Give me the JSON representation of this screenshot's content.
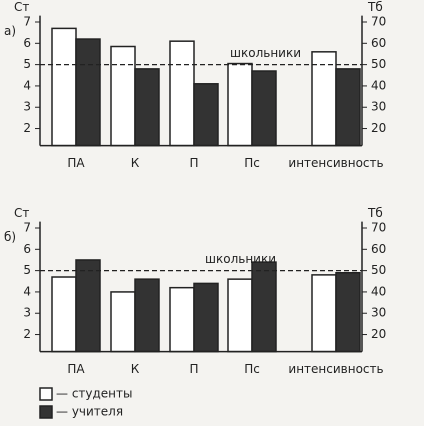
{
  "chart_data": [
    {
      "type": "bar",
      "panel": "а)",
      "ylabel": "Ст",
      "y2label": "Тб",
      "categories": [
        "ПА",
        "К",
        "П",
        "Пс",
        "интенсивность"
      ],
      "series": [
        {
          "color": "#ffffff",
          "values": [
            6.7,
            5.85,
            6.1,
            5.05,
            5.6
          ]
        },
        {
          "color": "#333333",
          "values": [
            6.2,
            4.8,
            4.1,
            4.7,
            4.8
          ]
        }
      ],
      "ylim": [
        1.2,
        7.3
      ],
      "yticks": [
        2,
        3,
        4,
        5,
        6,
        7
      ],
      "y2lim": [
        12,
        73
      ],
      "y2ticks": [
        20,
        30,
        40,
        50,
        60,
        70
      ],
      "reference": {
        "value": 5,
        "label": "школьники"
      }
    },
    {
      "type": "bar",
      "panel": "б)",
      "ylabel": "Ст",
      "y2label": "Тб",
      "categories": [
        "ПА",
        "К",
        "П",
        "Пс",
        "интенсивность"
      ],
      "series": [
        {
          "color": "#ffffff",
          "values": [
            4.7,
            4.0,
            4.2,
            4.6,
            4.8
          ]
        },
        {
          "color": "#333333",
          "values": [
            5.5,
            4.6,
            4.4,
            5.4,
            4.9
          ]
        }
      ],
      "ylim": [
        1.2,
        7.3
      ],
      "yticks": [
        2,
        3,
        4,
        5,
        6,
        7
      ],
      "y2lim": [
        12,
        73
      ],
      "y2ticks": [
        20,
        30,
        40,
        50,
        60,
        70
      ],
      "reference": {
        "value": 5,
        "label": "школьники"
      }
    }
  ],
  "legend": {
    "items": [
      {
        "label": "— студенты",
        "color": "#ffffff"
      },
      {
        "label": "— учителя",
        "color": "#333333"
      }
    ]
  }
}
